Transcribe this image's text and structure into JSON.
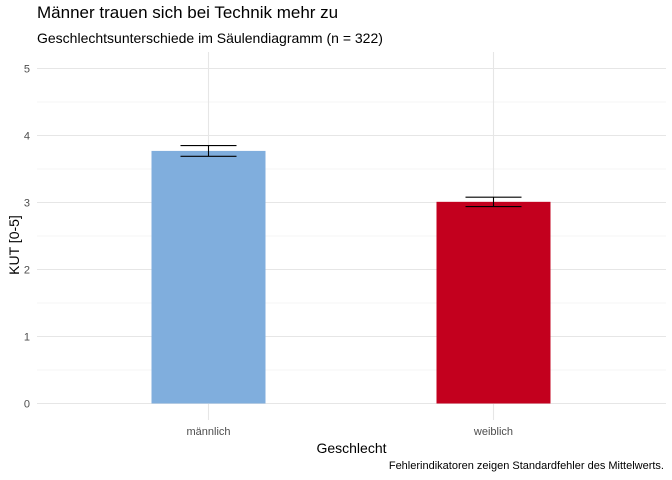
{
  "chart_data": {
    "type": "bar",
    "title": "Männer trauen sich bei Technik mehr zu",
    "subtitle": "Geschlechtsunterschiede im Säulendiagramm (n = 322)",
    "xlabel": "Geschlecht",
    "ylabel": "KUT [0-5]",
    "caption": "Fehlerindikatoren zeigen Standardfehler des Mittelwerts.",
    "categories": [
      "männlich",
      "weiblich"
    ],
    "values": [
      3.77,
      3.01
    ],
    "error_low": [
      3.69,
      2.94
    ],
    "error_high": [
      3.85,
      3.08
    ],
    "colors": [
      "#80AEDD",
      "#C3001E"
    ],
    "ylim": [
      0,
      5
    ],
    "yticks": [
      "0",
      "1",
      "2",
      "3",
      "4",
      "5"
    ],
    "grid": true,
    "legend": "none"
  }
}
